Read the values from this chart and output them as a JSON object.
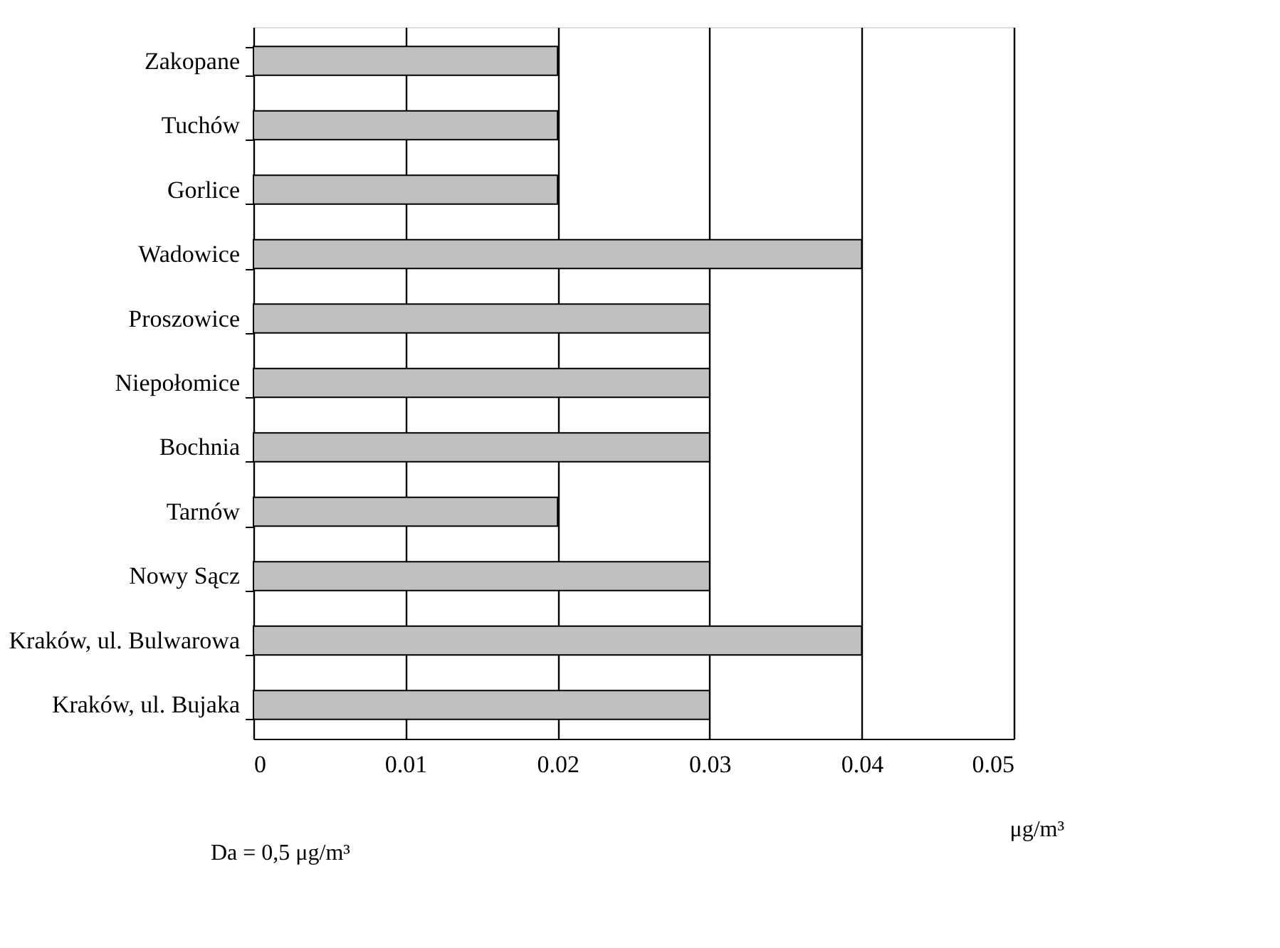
{
  "chart_data": {
    "type": "bar",
    "orientation": "horizontal",
    "categories": [
      "Zakopane",
      "Tuchów",
      "Gorlice",
      "Wadowice",
      "Proszowice",
      "Niepołomice",
      "Bochnia",
      "Tarnów",
      "Nowy Sącz",
      "Kraków, ul. Bulwarowa",
      "Kraków, ul. Bujaka"
    ],
    "values": [
      0.02,
      0.02,
      0.02,
      0.04,
      0.03,
      0.03,
      0.03,
      0.02,
      0.03,
      0.04,
      0.03
    ],
    "color": "#c0c0c0",
    "xlim": [
      0,
      0.05
    ],
    "xticks": [
      0,
      0.01,
      0.02,
      0.03,
      0.04,
      0.05
    ],
    "xlabel": "μg/m³",
    "grid": "x",
    "annotations": [
      "Da = 0,5 μg/m³"
    ]
  }
}
